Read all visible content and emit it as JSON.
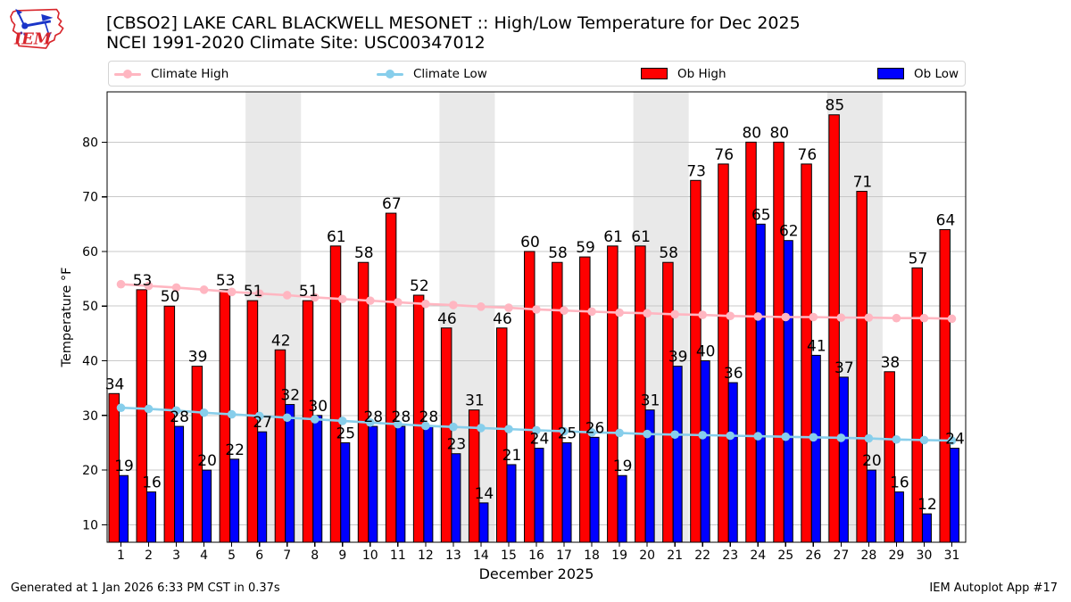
{
  "header": {
    "title_line1": "[CBSO2] LAKE CARL BLACKWELL MESONET :: High/Low Temperature for Dec 2025",
    "title_line2": "NCEI 1991-2020 Climate Site: USC00347012"
  },
  "logo": {
    "text": "IEM"
  },
  "legend": {
    "climate_high": "Climate High",
    "climate_low": "Climate Low",
    "ob_high": "Ob High",
    "ob_low": "Ob Low"
  },
  "footer": {
    "generated": "Generated at 1 Jan 2026 6:33 PM CST in 0.37s",
    "app": "IEM Autoplot App #17"
  },
  "colors": {
    "ob_high": "#ff0000",
    "ob_low": "#0000ff",
    "climate_high": "#ffb6c1",
    "climate_low": "#87ceeb",
    "weekend_band": "#e9e9e9",
    "grid": "#c8c8c8",
    "spine": "#000000",
    "logo_red": "#d8262c",
    "logo_blue": "#1a35c8"
  },
  "chart_data": {
    "type": "bar",
    "title": "[CBSO2] LAKE CARL BLACKWELL MESONET :: High/Low Temperature for Dec 2025",
    "subtitle": "NCEI 1991-2020 Climate Site: USC00347012",
    "xlabel": "December 2025",
    "ylabel": "Temperature °F",
    "ylim": [
      6.8,
      89.2
    ],
    "yticks": [
      10,
      20,
      30,
      40,
      50,
      60,
      70,
      80
    ],
    "categories": [
      1,
      2,
      3,
      4,
      5,
      6,
      7,
      8,
      9,
      10,
      11,
      12,
      13,
      14,
      15,
      16,
      17,
      18,
      19,
      20,
      21,
      22,
      23,
      24,
      25,
      26,
      27,
      28,
      29,
      30,
      31
    ],
    "series": [
      {
        "name": "Ob High",
        "type": "bar",
        "color": "#ff0000",
        "values": [
          34,
          53,
          50,
          39,
          53,
          51,
          42,
          51,
          61,
          58,
          67,
          52,
          46,
          31,
          46,
          60,
          58,
          59,
          61,
          61,
          58,
          73,
          76,
          80,
          80,
          76,
          85,
          71,
          38,
          57,
          64
        ]
      },
      {
        "name": "Ob Low",
        "type": "bar",
        "color": "#0000ff",
        "values": [
          19,
          16,
          28,
          20,
          22,
          27,
          32,
          30,
          25,
          28,
          28,
          28,
          23,
          14,
          21,
          24,
          25,
          26,
          19,
          31,
          39,
          40,
          36,
          65,
          62,
          41,
          37,
          20,
          16,
          12,
          24
        ]
      },
      {
        "name": "Climate High",
        "type": "line",
        "color": "#ffb6c1",
        "values": [
          54.0,
          53.7,
          53.4,
          53.0,
          52.6,
          52.3,
          52.0,
          51.6,
          51.3,
          51.0,
          50.7,
          50.4,
          50.2,
          49.9,
          49.7,
          49.4,
          49.2,
          49.0,
          48.8,
          48.7,
          48.5,
          48.4,
          48.2,
          48.1,
          48.0,
          48.0,
          47.9,
          47.9,
          47.8,
          47.8,
          47.7
        ]
      },
      {
        "name": "Climate Low",
        "type": "line",
        "color": "#87ceeb",
        "values": [
          31.4,
          31.2,
          30.9,
          30.5,
          30.2,
          29.9,
          29.6,
          29.3,
          29.0,
          28.7,
          28.4,
          28.1,
          27.9,
          27.7,
          27.5,
          27.3,
          27.1,
          26.9,
          26.8,
          26.6,
          26.5,
          26.4,
          26.3,
          26.2,
          26.1,
          26.0,
          25.9,
          25.8,
          25.6,
          25.5,
          25.4
        ]
      }
    ],
    "weekend_bands": [
      [
        6,
        7
      ],
      [
        13,
        14
      ],
      [
        20,
        21
      ],
      [
        27,
        28
      ]
    ],
    "grid": "horizontal",
    "legend_position": "top"
  }
}
